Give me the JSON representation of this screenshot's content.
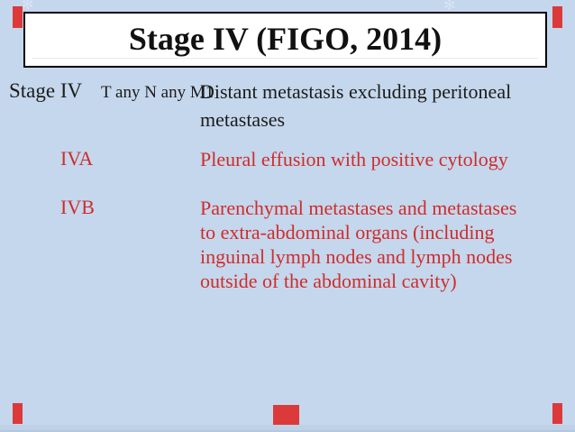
{
  "slide": {
    "title": "Stage IV (FIGO, 2014)",
    "table": {
      "rows": [
        {
          "stage": "Stage IV",
          "tnm": "T any N any M1",
          "desc_lines": [
            "Distant metastasis excluding peritoneal",
            "metastases"
          ],
          "text_color": "black"
        },
        {
          "stage": "IVA",
          "tnm": "",
          "desc_lines": [
            "Pleural effusion with positive cytology"
          ],
          "text_color": "red"
        },
        {
          "stage": "IVB",
          "tnm": "",
          "desc_lines": [
            "Parenchymal metastases and metastases",
            "to extra-abdominal organs (including",
            "inguinal lymph nodes and lymph nodes",
            "outside of the abdominal cavity)"
          ],
          "text_color": "red"
        }
      ]
    },
    "colors": {
      "background": "#c5d7ec",
      "title_text": "#111111",
      "body_text": "#1c1c1c",
      "red_text": "#cf2c2c",
      "accent_bar": "#dc3a3a",
      "title_box_bg": "#ffffff",
      "title_box_border": "#000000"
    },
    "decorations": {
      "snowflake_glyph": "✻"
    }
  }
}
